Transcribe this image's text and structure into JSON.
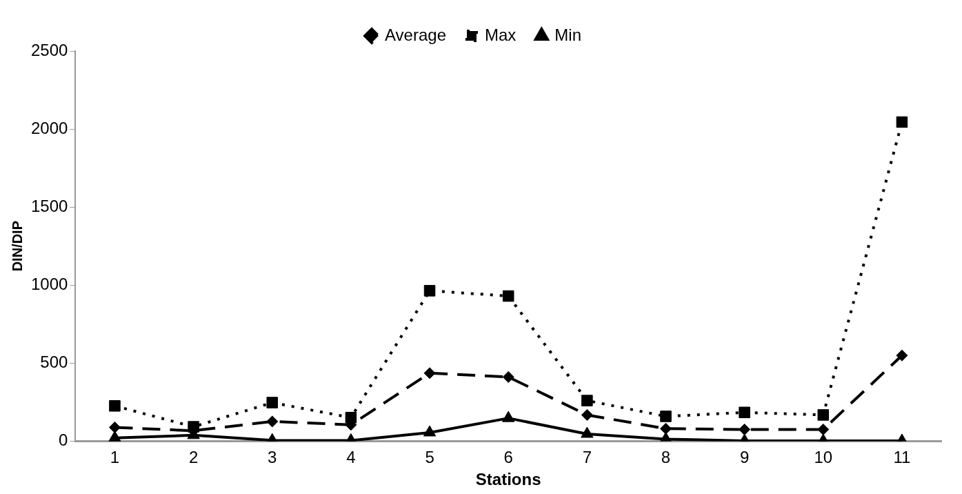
{
  "chart_data": {
    "type": "line",
    "xlabel": "Stations",
    "ylabel": "DIN/DIP",
    "categories": [
      "1",
      "2",
      "3",
      "4",
      "5",
      "6",
      "7",
      "8",
      "9",
      "10",
      "11"
    ],
    "series": [
      {
        "name": "Average",
        "color": "#000000",
        "marker": "diamond",
        "line_style": "dashed",
        "values": [
          88,
          67,
          126,
          105,
          436,
          411,
          168,
          80,
          75,
          75,
          549
        ]
      },
      {
        "name": "Max",
        "color": "#000000",
        "marker": "square",
        "line_style": "dotted",
        "values": [
          226,
          92,
          247,
          151,
          964,
          930,
          260,
          159,
          184,
          168,
          2045
        ]
      },
      {
        "name": "Min",
        "color": "#000000",
        "marker": "triangle",
        "line_style": "solid",
        "values": [
          21,
          38,
          5,
          4,
          55,
          147,
          46,
          13,
          2,
          2,
          2
        ]
      }
    ],
    "ylim": [
      0,
      2500
    ],
    "yticks": [
      0,
      500,
      1000,
      1500,
      2000,
      2500
    ],
    "grid": false,
    "legend": "top"
  }
}
